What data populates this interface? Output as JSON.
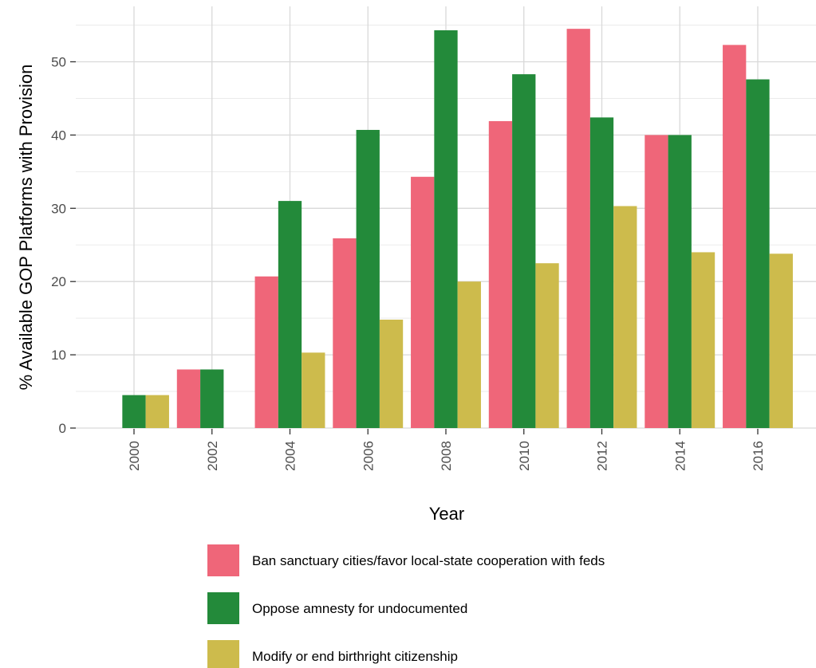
{
  "chart_data": {
    "type": "bar",
    "title": "",
    "xlabel": "Year",
    "ylabel": "% Available GOP Platforms with Provision",
    "categories": [
      "2000",
      "2002",
      "2004",
      "2006",
      "2008",
      "2010",
      "2012",
      "2014",
      "2016"
    ],
    "ylim": [
      0,
      56
    ],
    "yticks": [
      0,
      10,
      20,
      30,
      40,
      50
    ],
    "grid": true,
    "legend_position": "bottom",
    "series": [
      {
        "name": "Ban sanctuary cities/favor local-state cooperation with feds",
        "color": "#ef6679",
        "values": [
          0,
          8.0,
          20.7,
          25.9,
          34.3,
          41.9,
          54.5,
          40.0,
          52.3
        ]
      },
      {
        "name": "Oppose amnesty for undocumented",
        "color": "#238a3a",
        "values": [
          4.5,
          8.0,
          31.0,
          40.7,
          54.3,
          48.3,
          42.4,
          40.0,
          47.6
        ]
      },
      {
        "name": "Modify or end birthright citizenship",
        "color": "#cdbb4c",
        "values": [
          4.5,
          0,
          10.3,
          14.8,
          20.0,
          22.5,
          30.3,
          24.0,
          23.8
        ]
      }
    ]
  }
}
